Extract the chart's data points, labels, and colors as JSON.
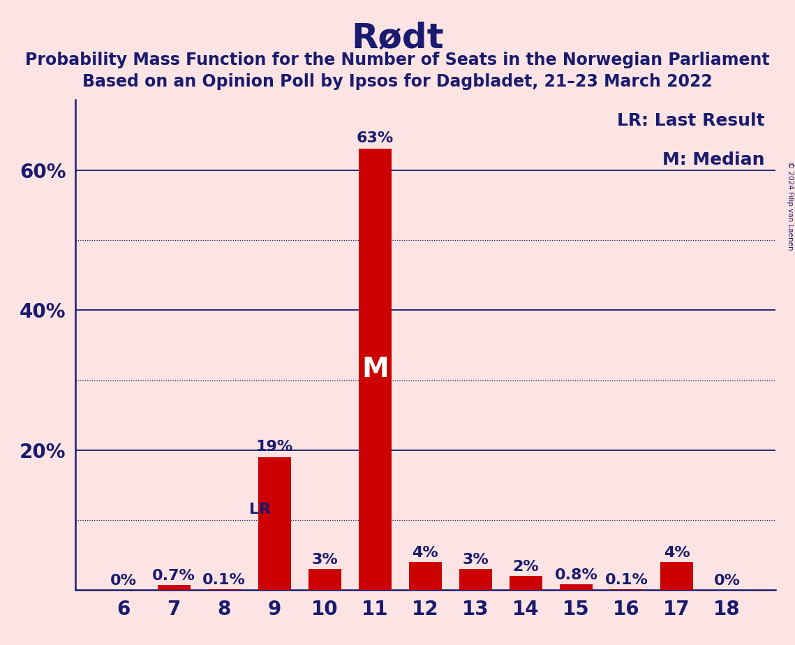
{
  "title": "Rødt",
  "subtitle1": "Probability Mass Function for the Number of Seats in the Norwegian Parliament",
  "subtitle2": "Based on an Opinion Poll by Ipsos for Dagbladet, 21–23 March 2022",
  "copyright": "© 2024 Filip van Laenen",
  "seats": [
    6,
    7,
    8,
    9,
    10,
    11,
    12,
    13,
    14,
    15,
    16,
    17,
    18
  ],
  "probabilities": [
    0.0,
    0.7,
    0.1,
    19.0,
    3.0,
    63.0,
    4.0,
    3.0,
    2.0,
    0.8,
    0.1,
    4.0,
    0.0
  ],
  "labels": [
    "0%",
    "0.7%",
    "0.1%",
    "19%",
    "3%",
    "63%",
    "4%",
    "3%",
    "2%",
    "0.8%",
    "0.1%",
    "4%",
    "0%"
  ],
  "bar_color": "#cc0000",
  "background_color": "#fce4e4",
  "title_color": "#1a1a6e",
  "axis_color": "#1a1a6e",
  "label_color": "#1a1a6e",
  "lr_seat": 8,
  "median_seat": 11,
  "ylim_max": 70,
  "shown_yticks": [
    20,
    40,
    60
  ],
  "shown_ytick_labels": [
    "20%",
    "40%",
    "60%"
  ],
  "solid_lines": [
    20,
    40,
    60
  ],
  "dotted_lines": [
    10,
    30,
    50
  ],
  "legend_lr": "LR: Last Result",
  "legend_m": "M: Median",
  "title_fontsize": 36,
  "subtitle_fontsize": 17,
  "axis_label_fontsize": 20,
  "bar_label_fontsize": 16,
  "legend_fontsize": 18,
  "m_fontsize": 28
}
